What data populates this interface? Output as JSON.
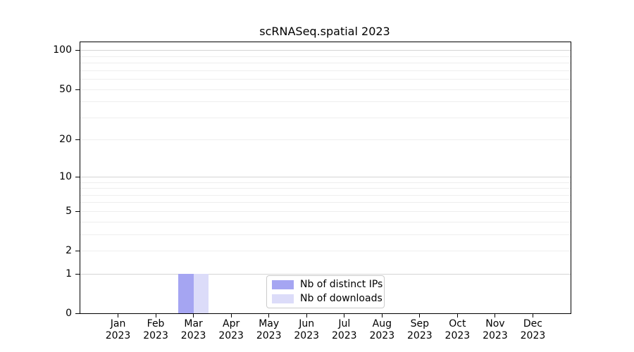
{
  "chart_data": {
    "type": "bar",
    "title": "scRNASeq.spatial 2023",
    "categories": [
      "Jan 2023",
      "Feb 2023",
      "Mar 2023",
      "Apr 2023",
      "May 2023",
      "Jun 2023",
      "Jul 2023",
      "Aug 2023",
      "Sep 2023",
      "Oct 2023",
      "Nov 2023",
      "Dec 2023"
    ],
    "series": [
      {
        "name": "Nb of distinct IPs",
        "color": "#a5a5f2",
        "values": [
          0,
          0,
          1,
          0,
          0,
          0,
          0,
          0,
          0,
          0,
          0,
          0
        ]
      },
      {
        "name": "Nb of downloads",
        "color": "#dcdcf9",
        "values": [
          0,
          0,
          1,
          0,
          0,
          0,
          0,
          0,
          0,
          0,
          0,
          0
        ]
      }
    ],
    "xlabel": "",
    "ylabel": "",
    "yscale": "log1p",
    "ylim": [
      0,
      115
    ],
    "ytick_labels": [
      100,
      50,
      20,
      10,
      5,
      2,
      1,
      0
    ],
    "y_major_gridlines": [
      1,
      10,
      100
    ],
    "y_minor_gridlines": [
      2,
      3,
      4,
      5,
      6,
      7,
      8,
      9,
      20,
      30,
      40,
      50,
      60,
      70,
      80,
      90
    ],
    "legend": {
      "position": "inside-bottom-center"
    },
    "grid": {
      "major_color": "#d4d4d4",
      "minor_color": "#eeeeee"
    }
  }
}
